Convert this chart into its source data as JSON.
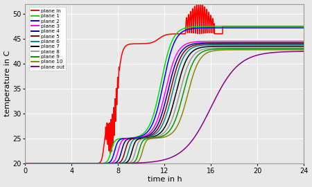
{
  "title": "",
  "xlabel": "time in h",
  "ylabel": "temperature in C",
  "xlim": [
    0,
    24
  ],
  "ylim": [
    20,
    52
  ],
  "xticks": [
    0,
    4,
    8,
    12,
    16,
    20,
    24
  ],
  "yticks": [
    20,
    25,
    30,
    35,
    40,
    45,
    50
  ],
  "background_color": "#e8e8e8",
  "grid_color": "#ffffff",
  "series": [
    {
      "label": "plane in",
      "color": "#ff0000"
    },
    {
      "label": "plane 1",
      "color": "#00dd00"
    },
    {
      "label": "plane 2",
      "color": "#0000ff"
    },
    {
      "label": "plane 3",
      "color": "#ff00ff"
    },
    {
      "label": "plane 4",
      "color": "#000099"
    },
    {
      "label": "plane 5",
      "color": "#880000"
    },
    {
      "label": "plane 6",
      "color": "#008888"
    },
    {
      "label": "plane 7",
      "color": "#000000"
    },
    {
      "label": "plane 8",
      "color": "#999999"
    },
    {
      "label": "plane 9",
      "color": "#009900"
    },
    {
      "label": "plane 10",
      "color": "#888800"
    },
    {
      "label": "plane out",
      "color": "#880088"
    }
  ],
  "plane_start_times": [
    6.5,
    7.0,
    7.3,
    7.6,
    7.9,
    8.2,
    8.5,
    8.8,
    9.1,
    9.4,
    9.7,
    13.5
  ],
  "plane_step2_times": [
    11.0,
    11.2,
    11.4,
    11.6,
    11.8,
    12.0,
    12.2,
    12.5,
    12.8,
    13.1,
    13.5,
    18.0
  ],
  "plane_final_vals": [
    47.5,
    47.5,
    47.2,
    44.5,
    44.2,
    44.0,
    43.8,
    43.5,
    43.2,
    43.0,
    42.8,
    42.5
  ]
}
